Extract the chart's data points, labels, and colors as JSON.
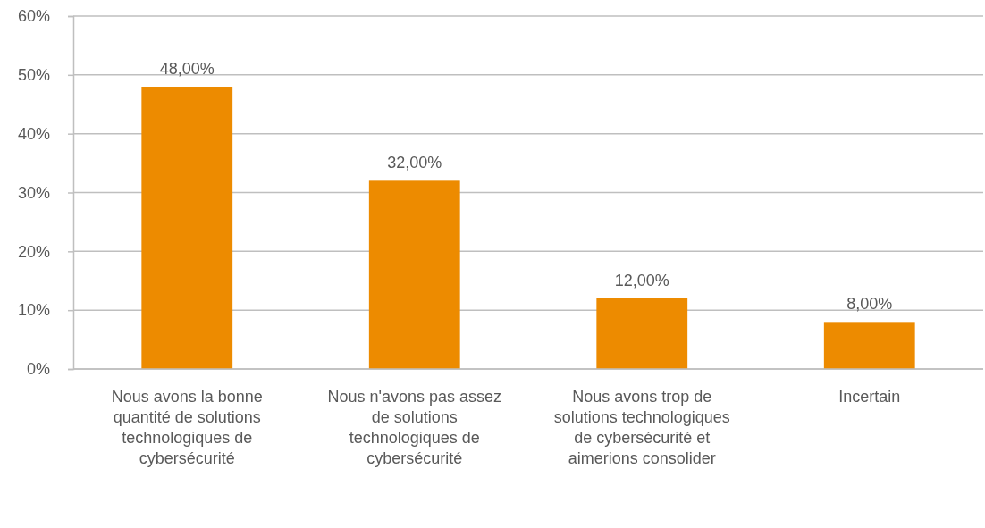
{
  "chart_data": {
    "type": "bar",
    "categories": [
      "Nous avons la bonne quantité de solutions technologiques de cybersécurité",
      "Nous n'avons pas assez de solutions technologiques de cybersécurité",
      "Nous avons trop de solutions technologiques de cybersécurité et aimerions consolider",
      "Incertain"
    ],
    "values": [
      48,
      32,
      12,
      8
    ],
    "value_labels": [
      "48,00%",
      "32,00%",
      "12,00%",
      "8,00%"
    ],
    "color": "#ed8b00",
    "ylim": [
      0,
      60
    ],
    "yticks": [
      {
        "value": 0,
        "label": "0%"
      },
      {
        "value": 10,
        "label": "10%"
      },
      {
        "value": 20,
        "label": "20%"
      },
      {
        "value": 30,
        "label": "30%"
      },
      {
        "value": 40,
        "label": "40%"
      },
      {
        "value": 50,
        "label": "50%"
      },
      {
        "value": 60,
        "label": "60%"
      }
    ],
    "grid": "y"
  }
}
